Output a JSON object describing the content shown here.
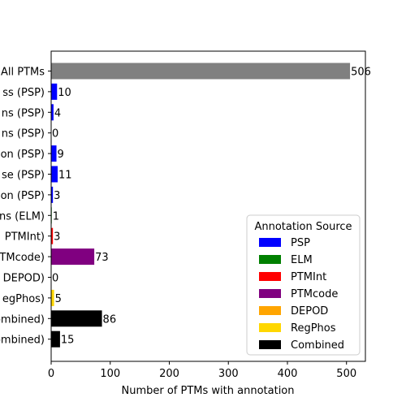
{
  "chart_data": {
    "type": "bar",
    "orientation": "horizontal",
    "xlabel": "Number of PTMs with annotation",
    "ylabel": "",
    "xlim": [
      0,
      532
    ],
    "xticks": [
      0,
      100,
      200,
      300,
      400,
      500
    ],
    "categories": [
      "All PTMs",
      "ss (PSP)",
      "ns (PSP)",
      "ns (PSP)",
      "on (PSP)",
      "se (PSP)",
      "on (PSP)",
      "ns (ELM)",
      "PTMInt)",
      "TMcode)",
      "DEPOD)",
      "egPhos)",
      "ombined)",
      "ombined)"
    ],
    "values": [
      506,
      10,
      4,
      0,
      9,
      11,
      3,
      1,
      3,
      73,
      0,
      5,
      86,
      15
    ],
    "value_labels": [
      "506",
      "10",
      "4",
      "0",
      "9",
      "11",
      "3",
      "1",
      "3",
      "73",
      "0",
      "5",
      "86",
      "15"
    ],
    "bar_sources": [
      "All",
      "PSP",
      "PSP",
      "PSP",
      "PSP",
      "PSP",
      "PSP",
      "ELM",
      "PTMInt",
      "PTMcode",
      "DEPOD",
      "RegPhos",
      "Combined",
      "Combined"
    ],
    "legend": {
      "title": "Annotation Source",
      "placement": "lower-right",
      "entries": [
        {
          "label": "PSP",
          "color": "#0000ff"
        },
        {
          "label": "ELM",
          "color": "#008000"
        },
        {
          "label": "PTMInt",
          "color": "#ff0000"
        },
        {
          "label": "PTMcode",
          "color": "#800080"
        },
        {
          "label": "DEPOD",
          "color": "#ffa500"
        },
        {
          "label": "RegPhos",
          "color": "#ffd700"
        },
        {
          "label": "Combined",
          "color": "#000000"
        }
      ]
    },
    "colors": {
      "All": "#808080",
      "PSP": "#0000ff",
      "ELM": "#008000",
      "PTMInt": "#ff0000",
      "PTMcode": "#800080",
      "DEPOD": "#ffa500",
      "RegPhos": "#ffd700",
      "Combined": "#000000"
    },
    "grid": false
  }
}
